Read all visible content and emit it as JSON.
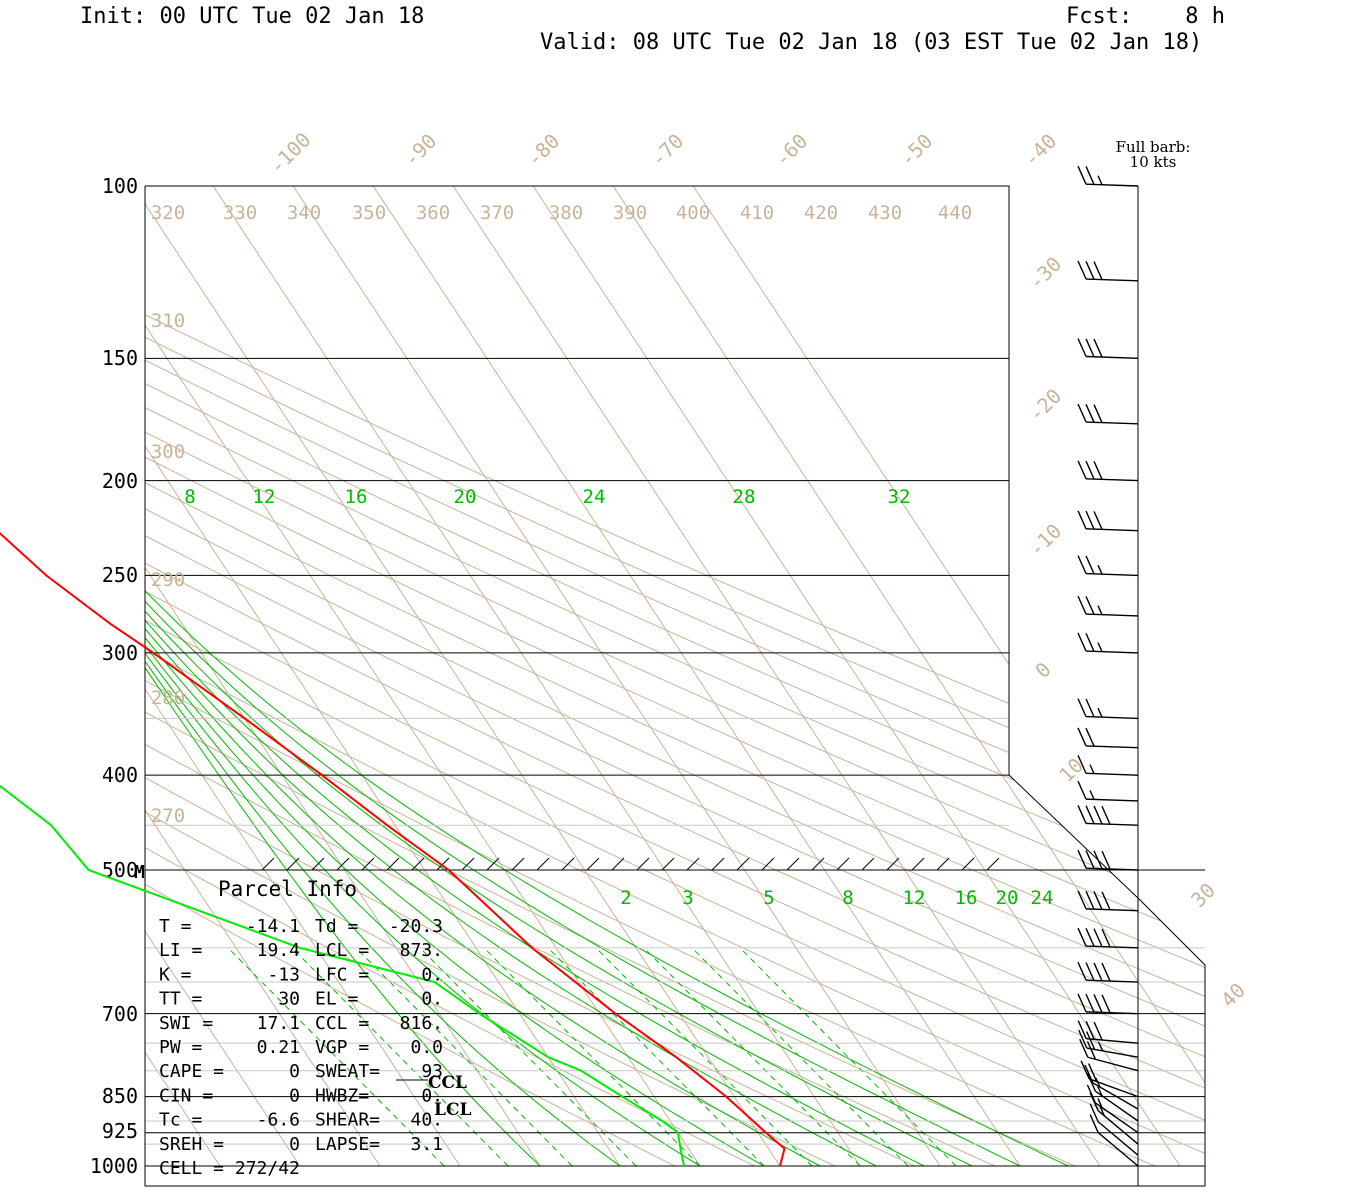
{
  "header": {
    "init": "Init: 00 UTC Tue 02 Jan 18",
    "fcst": "Fcst:    8 h",
    "valid": "Valid: 08 UTC Tue 02 Jan 18 (03 EST Tue 02 Jan 18)"
  },
  "barb_legend": [
    "Full barb:",
    "10 kts"
  ],
  "colors": {
    "temperature": "#ff0000",
    "dewpoint": "#00ee00",
    "mixing_ratio": "#00bb00",
    "background_lines": "#c8b49a",
    "isobars": "#000000"
  },
  "chart_data": {
    "type": "skew-t",
    "pressure_axis_labels": [
      "100",
      "150",
      "200",
      "250",
      "300",
      "400",
      "500",
      "700",
      "850",
      "925",
      "1000"
    ],
    "isotherm_labels": [
      "-100",
      "-90",
      "-80",
      "-70",
      "-60",
      "-50",
      "-40",
      "-30",
      "-20",
      "-10",
      "0",
      "10",
      "30",
      "40"
    ],
    "theta_labels": [
      "320",
      "330",
      "340",
      "350",
      "360",
      "370",
      "380",
      "390",
      "400",
      "410",
      "420",
      "430",
      "440",
      "310",
      "300",
      "290",
      "280",
      "270"
    ],
    "mixing_ratio_labels_upper": [
      "8",
      "12",
      "16",
      "20",
      "24",
      "28",
      "32"
    ],
    "mixing_ratio_labels_lower": [
      "2",
      "3",
      "5",
      "8",
      "12",
      "16",
      "20",
      "24"
    ],
    "temperature_profile_hpa_c": [
      [
        100,
        -54
      ],
      [
        120,
        -56
      ],
      [
        150,
        -58
      ],
      [
        200,
        -58
      ],
      [
        220,
        -56
      ],
      [
        250,
        -53
      ],
      [
        280,
        -49
      ],
      [
        300,
        -46
      ],
      [
        350,
        -40
      ],
      [
        400,
        -35
      ],
      [
        450,
        -31
      ],
      [
        500,
        -27
      ],
      [
        600,
        -23
      ],
      [
        700,
        -18
      ],
      [
        775,
        -14
      ],
      [
        850,
        -11
      ],
      [
        925,
        -9
      ],
      [
        960,
        -8
      ],
      [
        1000,
        -10
      ]
    ],
    "dewpoint_profile_hpa_c": [
      [
        100,
        -84
      ],
      [
        130,
        -86
      ],
      [
        150,
        -87
      ],
      [
        180,
        -90
      ],
      [
        200,
        -93
      ],
      [
        220,
        -92
      ],
      [
        250,
        -89
      ],
      [
        300,
        -83
      ],
      [
        350,
        -81
      ],
      [
        400,
        -77
      ],
      [
        450,
        -73
      ],
      [
        500,
        -72
      ],
      [
        600,
        -52
      ],
      [
        650,
        -38
      ],
      [
        700,
        -35
      ],
      [
        775,
        -30
      ],
      [
        800,
        -27
      ],
      [
        850,
        -24
      ],
      [
        900,
        -21
      ],
      [
        925,
        -20
      ],
      [
        960,
        -21
      ],
      [
        1000,
        -22
      ]
    ],
    "surface_marker": "M",
    "level_markers": [
      "CCL",
      "LCL"
    ],
    "parcel_info": {
      "title": "Parcel Info",
      "rows": [
        [
          "T  =",
          "-14.1",
          "Td =",
          "-20.3"
        ],
        [
          "LI =",
          "19.4",
          "LCL =",
          "873."
        ],
        [
          "K  =",
          "-13",
          "LFC =",
          "0."
        ],
        [
          "TT =",
          "30",
          "EL  =",
          "0."
        ],
        [
          "SWI =",
          "17.1",
          "CCL =",
          "816."
        ],
        [
          "PW  =",
          "0.21",
          "VGP =",
          "0.0"
        ],
        [
          "CAPE =",
          "0",
          "SWEAT=",
          "93"
        ],
        [
          "CIN  =",
          "0",
          "HWBZ=",
          "0."
        ],
        [
          "Tc =",
          "-6.6",
          "SHEAR=",
          "40."
        ],
        [
          "SREH =",
          "0",
          "LAPSE=",
          "3.1"
        ],
        [
          "CELL = 272/42",
          "",
          "",
          ""
        ]
      ]
    },
    "wind_barbs_hpa_dir_kts": [
      [
        100,
        272,
        25
      ],
      [
        125,
        272,
        30
      ],
      [
        150,
        272,
        30
      ],
      [
        175,
        272,
        30
      ],
      [
        200,
        272,
        30
      ],
      [
        225,
        272,
        30
      ],
      [
        250,
        272,
        25
      ],
      [
        275,
        272,
        25
      ],
      [
        300,
        272,
        25
      ],
      [
        350,
        272,
        25
      ],
      [
        375,
        272,
        20
      ],
      [
        400,
        272,
        15
      ],
      [
        425,
        272,
        15
      ],
      [
        450,
        272,
        40
      ],
      [
        500,
        272,
        40
      ],
      [
        550,
        272,
        40
      ],
      [
        600,
        272,
        40
      ],
      [
        650,
        272,
        40
      ],
      [
        700,
        272,
        40
      ],
      [
        750,
        275,
        30
      ],
      [
        775,
        280,
        25
      ],
      [
        800,
        285,
        20
      ],
      [
        850,
        290,
        20
      ],
      [
        875,
        300,
        15
      ],
      [
        900,
        305,
        15
      ],
      [
        925,
        305,
        15
      ],
      [
        950,
        310,
        15
      ],
      [
        975,
        310,
        10
      ],
      [
        1000,
        310,
        10
      ]
    ]
  }
}
